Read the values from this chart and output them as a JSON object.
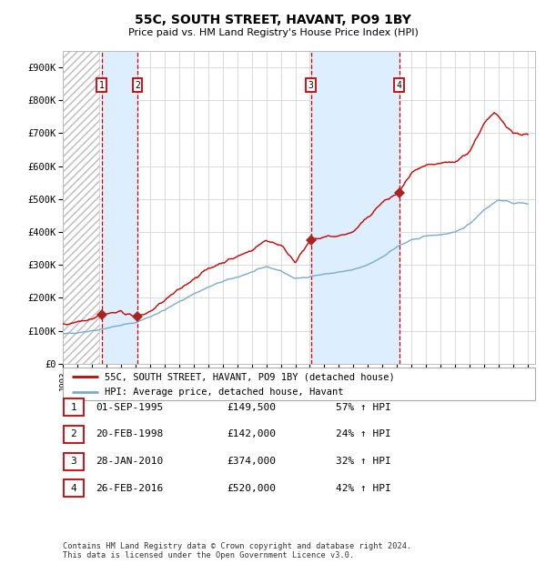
{
  "title": "55C, SOUTH STREET, HAVANT, PO9 1BY",
  "subtitle": "Price paid vs. HM Land Registry's House Price Index (HPI)",
  "xlim": [
    1993.0,
    2025.5
  ],
  "ylim": [
    0,
    950000
  ],
  "yticks": [
    0,
    100000,
    200000,
    300000,
    400000,
    500000,
    600000,
    700000,
    800000,
    900000
  ],
  "ytick_labels": [
    "£0",
    "£100K",
    "£200K",
    "£300K",
    "£400K",
    "£500K",
    "£600K",
    "£700K",
    "£800K",
    "£900K"
  ],
  "sale_dates": [
    1995.67,
    1998.13,
    2010.07,
    2016.15
  ],
  "sale_prices": [
    149500,
    142000,
    374000,
    520000
  ],
  "sale_labels": [
    "1",
    "2",
    "3",
    "4"
  ],
  "red_line_color": "#cc0000",
  "hpi_line_color": "#7aabcc",
  "sale_marker_color": "#aa2222",
  "vline_color": "#cc0000",
  "shade_color": "#ddeeff",
  "grid_color": "#cccccc",
  "label_box_color": "#cc0000",
  "legend_line1": "55C, SOUTH STREET, HAVANT, PO9 1BY (detached house)",
  "legend_line2": "HPI: Average price, detached house, Havant",
  "table_rows": [
    [
      "1",
      "01-SEP-1995",
      "£149,500",
      "57% ↑ HPI"
    ],
    [
      "2",
      "20-FEB-1998",
      "£142,000",
      "24% ↑ HPI"
    ],
    [
      "3",
      "28-JAN-2010",
      "£374,000",
      "32% ↑ HPI"
    ],
    [
      "4",
      "26-FEB-2016",
      "£520,000",
      "42% ↑ HPI"
    ]
  ],
  "footnote": "Contains HM Land Registry data © Crown copyright and database right 2024.\nThis data is licensed under the Open Government Licence v3.0.",
  "background_color": "#ffffff",
  "hatch_region_end": 1995.5,
  "hpi_anchors_x": [
    1993,
    1994,
    1995,
    1996,
    1997,
    1998,
    1999,
    2000,
    2001,
    2002,
    2003,
    2004,
    2005,
    2006,
    2007,
    2008,
    2009,
    2010,
    2011,
    2012,
    2013,
    2014,
    2015,
    2016,
    2017,
    2018,
    2019,
    2020,
    2021,
    2022,
    2023,
    2024,
    2025
  ],
  "hpi_anchors_y": [
    90000,
    95000,
    100000,
    108000,
    117000,
    125000,
    143000,
    163000,
    188000,
    212000,
    232000,
    250000,
    263000,
    278000,
    295000,
    282000,
    258000,
    265000,
    272000,
    278000,
    285000,
    300000,
    325000,
    355000,
    375000,
    388000,
    392000,
    398000,
    425000,
    468000,
    498000,
    488000,
    487000
  ],
  "prop_anchors_x": [
    1993,
    1995.0,
    1995.67,
    1997.0,
    1998.13,
    1999,
    2000,
    2001,
    2002,
    2003,
    2004,
    2005,
    2006,
    2007,
    2008,
    2009,
    2010.07,
    2011,
    2012,
    2013,
    2014,
    2015,
    2016.15,
    2017,
    2018,
    2019,
    2020,
    2021,
    2022,
    2022.7,
    2023,
    2024,
    2025
  ],
  "prop_anchors_y": [
    118000,
    138000,
    149500,
    158000,
    142000,
    158000,
    192000,
    225000,
    258000,
    288000,
    308000,
    325000,
    345000,
    375000,
    360000,
    310000,
    374000,
    385000,
    388000,
    400000,
    445000,
    490000,
    520000,
    580000,
    600000,
    608000,
    612000,
    645000,
    730000,
    760000,
    750000,
    700000,
    695000
  ]
}
